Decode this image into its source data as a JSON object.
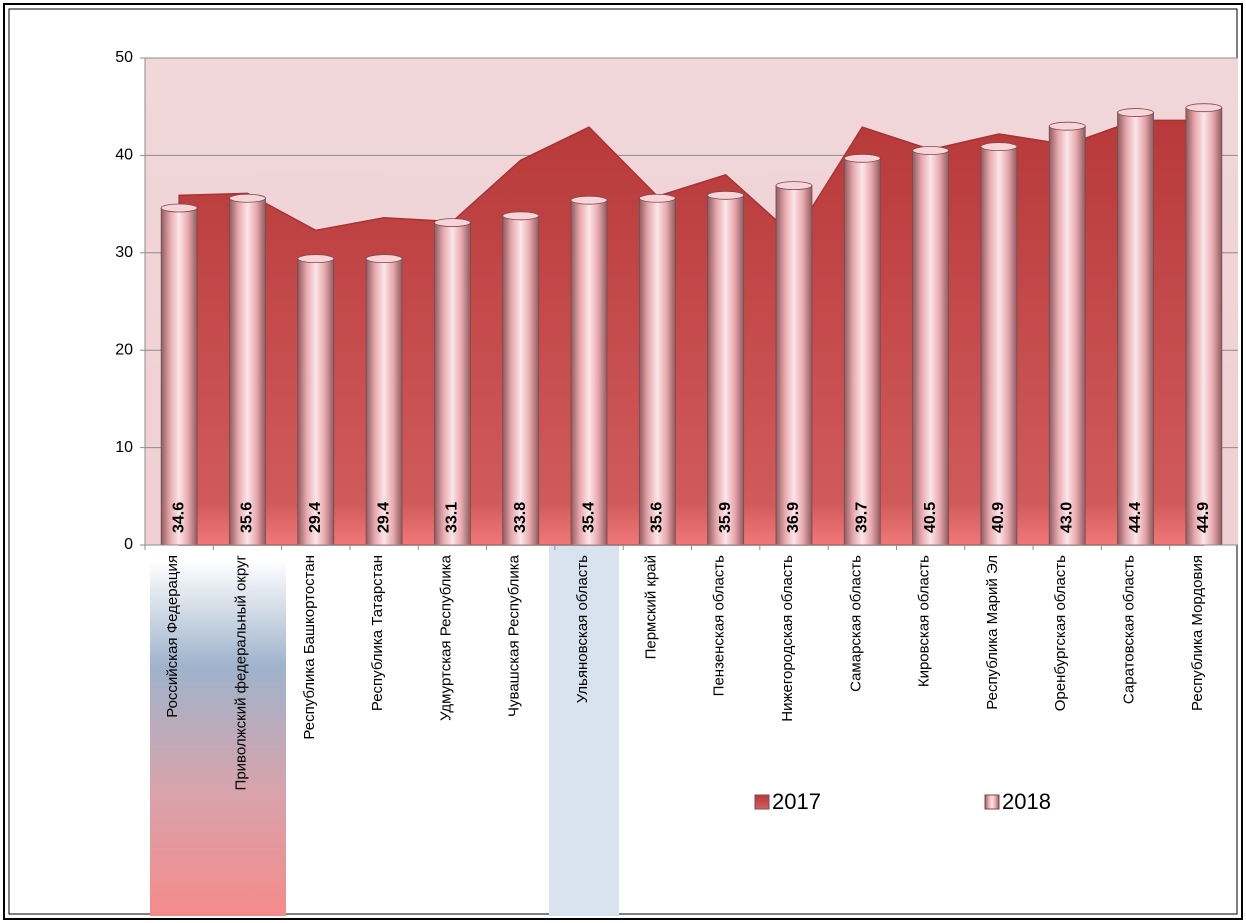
{
  "chart_data": {
    "type": "bar_area",
    "categories": [
      "Российская Федерация",
      "Приволжский федеральный округ",
      "Республика Башкортостан",
      "Республика Татарстан",
      "Удмуртская Республика",
      "Чувашская Республика",
      "Ульяновская область",
      "Пермский край",
      "Пензенская область",
      "Нижегородская область",
      "Самарская область",
      "Кировская область",
      "Республика Марий Эл",
      "Оренбургская область",
      "Саратовская область",
      "Республика Мордовия"
    ],
    "series": [
      {
        "name": "2017",
        "color": "#c9504f",
        "values": [
          35.9,
          36.1,
          32.3,
          33.6,
          33.2,
          39.5,
          42.9,
          35.8,
          38.0,
          31.7,
          42.9,
          40.6,
          42.2,
          41.1,
          43.6,
          43.6
        ]
      },
      {
        "name": "2018",
        "color": "#f0b8bc",
        "values": [
          34.6,
          35.6,
          29.4,
          29.4,
          33.1,
          33.8,
          35.4,
          35.6,
          35.9,
          36.9,
          39.7,
          40.5,
          40.9,
          43.0,
          44.4,
          44.9
        ],
        "value_labels": [
          "34.6",
          "35.6",
          "29.4",
          "29.4",
          "33.1",
          "33.8",
          "35.4",
          "35.6",
          "35.9",
          "36.9",
          "39.7",
          "40.5",
          "40.9",
          "43.0",
          "44.4",
          "44.9"
        ]
      }
    ],
    "ylim": [
      0,
      50
    ],
    "yticks": [
      0,
      10,
      20,
      30,
      40,
      50
    ],
    "grid": true
  }
}
